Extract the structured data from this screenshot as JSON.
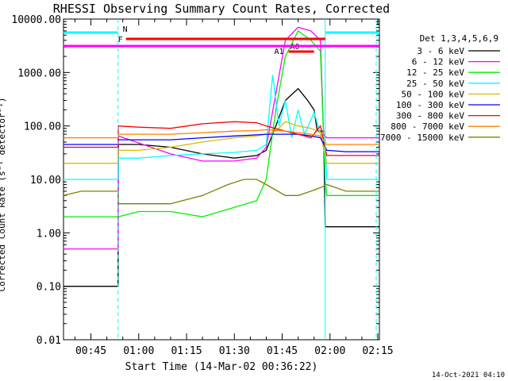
{
  "chart_data": {
    "type": "line",
    "title": "RHESSI Observing Summary Count Rates, Corrected",
    "xlabel": "Start Time (14-Mar-02 00:36:22)",
    "ylabel": "Corrected Count Rate (s⁻¹ detector⁻¹)",
    "y_scale": "log",
    "ylim": [
      0.01,
      10000
    ],
    "xlim_minutes": [
      36.4,
      135.5
    ],
    "y_ticks": [
      {
        "value": 10000,
        "label": "10000.00"
      },
      {
        "value": 1000,
        "label": "1000.00"
      },
      {
        "value": 100,
        "label": "100.00"
      },
      {
        "value": 10,
        "label": "10.00"
      },
      {
        "value": 1,
        "label": "1.00"
      },
      {
        "value": 0.1,
        "label": "0.10"
      },
      {
        "value": 0.01,
        "label": "0.01"
      }
    ],
    "x_ticks": [
      {
        "value": 45,
        "label": "00:45"
      },
      {
        "value": 60,
        "label": "01:00"
      },
      {
        "value": 75,
        "label": "01:15"
      },
      {
        "value": 90,
        "label": "01:30"
      },
      {
        "value": 105,
        "label": "01:45"
      },
      {
        "value": 120,
        "label": "02:00"
      },
      {
        "value": 135,
        "label": "02:15"
      }
    ],
    "legend_title": "Det 1,3,4,5,6,9",
    "legend_position": "right",
    "series": [
      {
        "name": "3 - 6 keV",
        "color": "#000000",
        "x": [
          36.4,
          53.5,
          53.6,
          60,
          70,
          80,
          90,
          97,
          100,
          103,
          106,
          110,
          113,
          115,
          116,
          118,
          118.5,
          125,
          135.5
        ],
        "y": [
          0.1,
          0.1,
          45,
          45,
          40,
          30,
          25,
          28,
          35,
          100,
          300,
          500,
          300,
          200,
          80,
          80,
          1.3,
          1.3,
          1.3
        ]
      },
      {
        "name": "6 - 12 keV",
        "color": "#ff00ff",
        "x": [
          36.4,
          53.5,
          53.6,
          60,
          70,
          80,
          90,
          97,
          100,
          103,
          106,
          110,
          114,
          117,
          118,
          119,
          125,
          135.5
        ],
        "y": [
          0.5,
          0.5,
          65,
          48,
          30,
          22,
          22,
          25,
          40,
          400,
          4000,
          7000,
          6000,
          4000,
          70,
          60,
          60,
          60
        ]
      },
      {
        "name": "12 - 25 keV",
        "color": "#00ee00",
        "x": [
          36.4,
          53.5,
          53.6,
          60,
          70,
          80,
          90,
          97,
          100,
          103,
          106,
          110,
          114,
          117,
          118.5,
          119,
          125,
          135.5
        ],
        "y": [
          2,
          2,
          2,
          2.5,
          2.5,
          2,
          3,
          4,
          10,
          200,
          2000,
          6000,
          4000,
          2500,
          10,
          5,
          5,
          5
        ]
      },
      {
        "name": "25 - 50 keV",
        "color": "#00ffff",
        "x": [
          36.4,
          53.5,
          53.6,
          60,
          70,
          80,
          90,
          97,
          100,
          102,
          104,
          106,
          108,
          110,
          112,
          115,
          117,
          118.5,
          119,
          125,
          135.5
        ],
        "y": [
          10,
          10,
          25,
          25,
          28,
          30,
          32,
          35,
          45,
          900,
          100,
          300,
          60,
          200,
          70,
          180,
          70,
          60,
          10,
          10,
          10
        ]
      },
      {
        "name": "50 - 100 keV",
        "color": "#ddbb00",
        "x": [
          36.4,
          53.5,
          53.6,
          60,
          70,
          80,
          90,
          97,
          100,
          103,
          106,
          110,
          114,
          117,
          119,
          125,
          135.5
        ],
        "y": [
          20,
          20,
          35,
          35,
          40,
          50,
          60,
          65,
          70,
          80,
          120,
          100,
          90,
          75,
          20,
          20,
          20
        ]
      },
      {
        "name": "100 - 300 keV",
        "color": "#0000ff",
        "x": [
          36.4,
          53.5,
          53.6,
          60,
          70,
          80,
          90,
          97,
          100,
          106,
          110,
          114,
          117,
          119,
          125,
          135.5
        ],
        "y": [
          45,
          45,
          55,
          55,
          55,
          60,
          65,
          68,
          70,
          70,
          70,
          65,
          60,
          35,
          33,
          33
        ]
      },
      {
        "name": "300 - 800 keV",
        "color": "#ff0000",
        "x": [
          36.4,
          53.5,
          53.6,
          60,
          70,
          80,
          90,
          97,
          100,
          106,
          110,
          114,
          117,
          119,
          125,
          135.5
        ],
        "y": [
          40,
          40,
          100,
          95,
          90,
          110,
          120,
          115,
          100,
          80,
          70,
          60,
          100,
          28,
          28,
          28
        ]
      },
      {
        "name": "800 - 7000 keV",
        "color": "#ff8000",
        "x": [
          36.4,
          53.5,
          53.6,
          60,
          70,
          80,
          90,
          97,
          100,
          106,
          110,
          114,
          117,
          119,
          125,
          135.5
        ],
        "y": [
          60,
          60,
          70,
          70,
          70,
          75,
          80,
          82,
          85,
          80,
          75,
          70,
          65,
          45,
          45,
          45
        ]
      },
      {
        "name": "7000 - 15000 keV",
        "color": "#808000",
        "x": [
          36.4,
          42,
          53.5,
          53.6,
          60,
          70,
          80,
          88,
          93,
          97,
          100,
          106,
          110,
          114,
          117,
          119,
          125,
          135.5
        ],
        "y": [
          5,
          6,
          6,
          3.5,
          3.5,
          3.5,
          5,
          8,
          10,
          10,
          8,
          5,
          5,
          6,
          7,
          8,
          6,
          6
        ]
      }
    ],
    "state_bars": [
      {
        "label": "N",
        "color": "#00ffff",
        "segments": [
          [
            36.4,
            53.5
          ],
          [
            118.5,
            135.5
          ]
        ]
      },
      {
        "label": "F",
        "color": "#ff0000",
        "segments": [
          [
            56,
            118.5
          ]
        ]
      },
      {
        "label": "A0",
        "color": "#ff0000",
        "segments": [
          [
            107,
            115
          ]
        ]
      },
      {
        "label": "A1",
        "color": "#ff00ff",
        "segments": [
          [
            36.4,
            135.5
          ]
        ]
      }
    ],
    "vertical_markers": [
      {
        "x": 53.5,
        "style": "dashed",
        "color": "#00ffff"
      },
      {
        "x": 118.5,
        "style": "solid",
        "color": "#00ffff"
      },
      {
        "x": 134.5,
        "style": "dashed",
        "color": "#00ffff"
      }
    ]
  },
  "footer": {
    "timestamp": "14-Oct-2021 04:10"
  }
}
